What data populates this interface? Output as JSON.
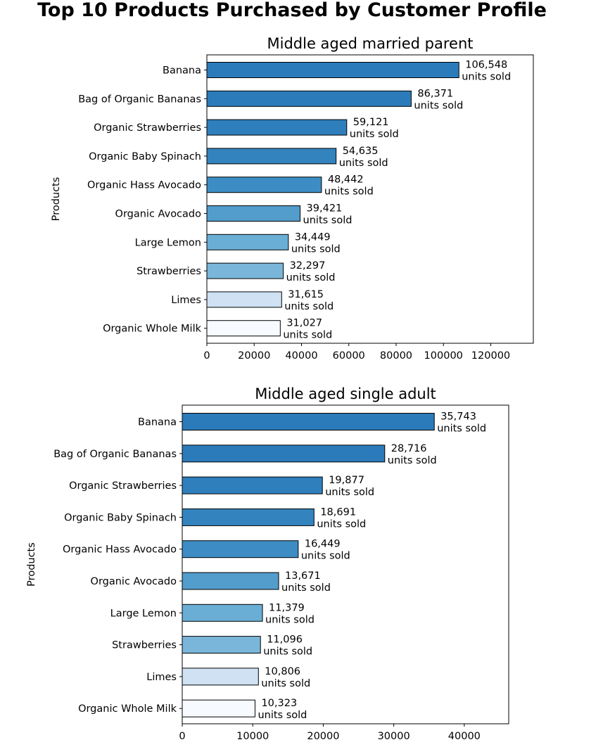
{
  "suptitle": "Top 10 Products Purchased by Customer Profile",
  "chart_data": [
    {
      "type": "bar",
      "orientation": "horizontal",
      "title": "Middle aged married parent",
      "xlabel": "",
      "ylabel": "Products",
      "xlim": [
        0,
        138000
      ],
      "xticks": [
        0,
        20000,
        40000,
        60000,
        80000,
        100000,
        120000
      ],
      "grid": false,
      "categories": [
        "Banana",
        "Bag of Organic Bananas",
        "Organic Strawberries",
        "Organic Baby Spinach",
        "Organic Hass Avocado",
        "Organic Avocado",
        "Large Lemon",
        "Strawberries",
        "Limes",
        "Organic Whole Milk"
      ],
      "values": [
        106548,
        86371,
        59121,
        54635,
        48442,
        39421,
        34449,
        32297,
        31615,
        31027
      ],
      "value_labels": [
        "106,548",
        "86,371",
        "59,121",
        "54,635",
        "48,442",
        "39,421",
        "34,449",
        "32,297",
        "31,615",
        "31,027"
      ],
      "label_suffix": "units sold",
      "colors": [
        "#2b7bba",
        "#2b7bba",
        "#2f7fbc",
        "#3383be",
        "#3d8dc4",
        "#529dcc",
        "#6aaed6",
        "#7ab6d9",
        "#cfe1f2",
        "#f7fbff"
      ]
    },
    {
      "type": "bar",
      "orientation": "horizontal",
      "title": "Middle aged single adult",
      "xlabel": "",
      "ylabel": "Products",
      "xlim": [
        0,
        46300
      ],
      "xticks": [
        0,
        10000,
        20000,
        30000,
        40000
      ],
      "grid": false,
      "categories": [
        "Banana",
        "Bag of Organic Bananas",
        "Organic Strawberries",
        "Organic Baby Spinach",
        "Organic Hass Avocado",
        "Organic Avocado",
        "Large Lemon",
        "Strawberries",
        "Limes",
        "Organic Whole Milk"
      ],
      "values": [
        35743,
        28716,
        19877,
        18691,
        16449,
        13671,
        11379,
        11096,
        10806,
        10323
      ],
      "value_labels": [
        "35,743",
        "28,716",
        "19,877",
        "18,691",
        "16,449",
        "13,671",
        "11,379",
        "11,096",
        "10,806",
        "10,323"
      ],
      "label_suffix": "units sold",
      "colors": [
        "#2b7bba",
        "#2b7bba",
        "#2f7fbc",
        "#3383be",
        "#3d8dc4",
        "#529dcc",
        "#6aaed6",
        "#7ab6d9",
        "#cfe1f2",
        "#f7fbff"
      ]
    }
  ]
}
